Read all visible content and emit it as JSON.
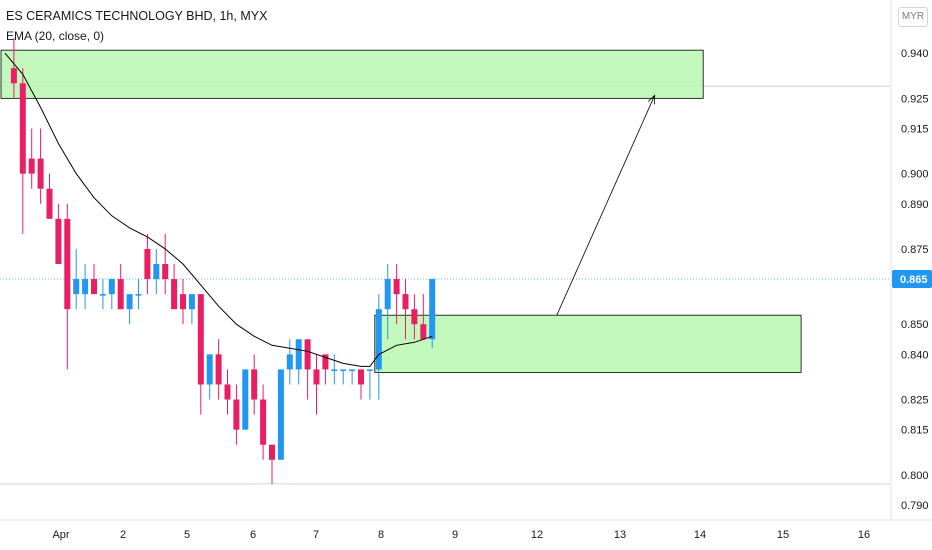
{
  "header": {
    "title": "ES CERAMICS TECHNOLOGY BHD, 1h, MYX",
    "indicator": "EMA (20, close, 0)",
    "currency": "MYR"
  },
  "colors": {
    "up": "#2196f3",
    "down": "#e91e63",
    "ema": "#000000",
    "zone_fill": "#b7f7b0",
    "zone_border": "#000000",
    "price_tag": "#2196f3"
  },
  "chart_data": {
    "type": "candlestick",
    "title": "ES CERAMICS TECHNOLOGY BHD, 1h, MYX",
    "ylim": [
      0.785,
      0.955
    ],
    "y_ticks": [
      "0.940",
      "0.925",
      "0.915",
      "0.900",
      "0.890",
      "0.875",
      "0.865",
      "0.850",
      "0.840",
      "0.825",
      "0.815",
      "0.800",
      "0.790"
    ],
    "x_ticks": [
      "Apr",
      "2",
      "5",
      "6",
      "7",
      "8",
      "9",
      "12",
      "13",
      "14",
      "15",
      "16"
    ],
    "last_price": "0.865",
    "candles": [
      {
        "x": 1,
        "o": 0.935,
        "h": 0.945,
        "l": 0.925,
        "c": 0.93
      },
      {
        "x": 2,
        "o": 0.93,
        "h": 0.935,
        "l": 0.88,
        "c": 0.9
      },
      {
        "x": 3,
        "o": 0.905,
        "h": 0.915,
        "l": 0.895,
        "c": 0.9
      },
      {
        "x": 4,
        "o": 0.905,
        "h": 0.915,
        "l": 0.89,
        "c": 0.895
      },
      {
        "x": 5,
        "o": 0.895,
        "h": 0.9,
        "l": 0.885,
        "c": 0.885
      },
      {
        "x": 6,
        "o": 0.885,
        "h": 0.89,
        "l": 0.87,
        "c": 0.87
      },
      {
        "x": 7,
        "o": 0.885,
        "h": 0.89,
        "l": 0.835,
        "c": 0.855
      },
      {
        "x": 8,
        "o": 0.86,
        "h": 0.875,
        "l": 0.855,
        "c": 0.865
      },
      {
        "x": 9,
        "o": 0.86,
        "h": 0.87,
        "l": 0.855,
        "c": 0.865
      },
      {
        "x": 10,
        "o": 0.865,
        "h": 0.87,
        "l": 0.86,
        "c": 0.86
      },
      {
        "x": 11,
        "o": 0.86,
        "h": 0.865,
        "l": 0.855,
        "c": 0.86
      },
      {
        "x": 12,
        "o": 0.86,
        "h": 0.865,
        "l": 0.855,
        "c": 0.865
      },
      {
        "x": 13,
        "o": 0.865,
        "h": 0.87,
        "l": 0.855,
        "c": 0.855
      },
      {
        "x": 14,
        "o": 0.855,
        "h": 0.86,
        "l": 0.85,
        "c": 0.86
      },
      {
        "x": 15,
        "o": 0.86,
        "h": 0.865,
        "l": 0.855,
        "c": 0.86
      },
      {
        "x": 16,
        "o": 0.875,
        "h": 0.88,
        "l": 0.86,
        "c": 0.865
      },
      {
        "x": 17,
        "o": 0.865,
        "h": 0.875,
        "l": 0.86,
        "c": 0.87
      },
      {
        "x": 18,
        "o": 0.87,
        "h": 0.88,
        "l": 0.86,
        "c": 0.865
      },
      {
        "x": 19,
        "o": 0.865,
        "h": 0.87,
        "l": 0.855,
        "c": 0.855
      },
      {
        "x": 20,
        "o": 0.86,
        "h": 0.865,
        "l": 0.85,
        "c": 0.855
      },
      {
        "x": 21,
        "o": 0.855,
        "h": 0.86,
        "l": 0.85,
        "c": 0.86
      },
      {
        "x": 22,
        "o": 0.86,
        "h": 0.86,
        "l": 0.82,
        "c": 0.83
      },
      {
        "x": 23,
        "o": 0.83,
        "h": 0.84,
        "l": 0.825,
        "c": 0.84
      },
      {
        "x": 24,
        "o": 0.84,
        "h": 0.845,
        "l": 0.825,
        "c": 0.83
      },
      {
        "x": 25,
        "o": 0.83,
        "h": 0.835,
        "l": 0.82,
        "c": 0.825
      },
      {
        "x": 26,
        "o": 0.825,
        "h": 0.83,
        "l": 0.81,
        "c": 0.815
      },
      {
        "x": 27,
        "o": 0.815,
        "h": 0.835,
        "l": 0.815,
        "c": 0.835
      },
      {
        "x": 28,
        "o": 0.835,
        "h": 0.84,
        "l": 0.82,
        "c": 0.825
      },
      {
        "x": 29,
        "o": 0.825,
        "h": 0.83,
        "l": 0.805,
        "c": 0.81
      },
      {
        "x": 30,
        "o": 0.81,
        "h": 0.81,
        "l": 0.797,
        "c": 0.805
      },
      {
        "x": 31,
        "o": 0.805,
        "h": 0.835,
        "l": 0.805,
        "c": 0.835
      },
      {
        "x": 32,
        "o": 0.835,
        "h": 0.845,
        "l": 0.83,
        "c": 0.84
      },
      {
        "x": 33,
        "o": 0.835,
        "h": 0.845,
        "l": 0.83,
        "c": 0.845
      },
      {
        "x": 34,
        "o": 0.845,
        "h": 0.845,
        "l": 0.825,
        "c": 0.835
      },
      {
        "x": 35,
        "o": 0.835,
        "h": 0.84,
        "l": 0.82,
        "c": 0.83
      },
      {
        "x": 36,
        "o": 0.84,
        "h": 0.84,
        "l": 0.83,
        "c": 0.835
      },
      {
        "x": 37,
        "o": 0.835,
        "h": 0.84,
        "l": 0.83,
        "c": 0.835
      },
      {
        "x": 38,
        "o": 0.835,
        "h": 0.835,
        "l": 0.83,
        "c": 0.835
      },
      {
        "x": 39,
        "o": 0.835,
        "h": 0.835,
        "l": 0.83,
        "c": 0.835
      },
      {
        "x": 40,
        "o": 0.835,
        "h": 0.835,
        "l": 0.825,
        "c": 0.83
      },
      {
        "x": 41,
        "o": 0.835,
        "h": 0.835,
        "l": 0.825,
        "c": 0.835
      },
      {
        "x": 42,
        "o": 0.835,
        "h": 0.86,
        "l": 0.825,
        "c": 0.855
      },
      {
        "x": 43,
        "o": 0.855,
        "h": 0.87,
        "l": 0.845,
        "c": 0.865
      },
      {
        "x": 44,
        "o": 0.865,
        "h": 0.87,
        "l": 0.85,
        "c": 0.86
      },
      {
        "x": 45,
        "o": 0.86,
        "h": 0.865,
        "l": 0.845,
        "c": 0.855
      },
      {
        "x": 46,
        "o": 0.855,
        "h": 0.86,
        "l": 0.845,
        "c": 0.85
      },
      {
        "x": 47,
        "o": 0.85,
        "h": 0.86,
        "l": 0.845,
        "c": 0.845
      },
      {
        "x": 48,
        "o": 0.845,
        "h": 0.865,
        "l": 0.842,
        "c": 0.865
      }
    ],
    "ema": [
      {
        "x": 0,
        "y": 0.94
      },
      {
        "x": 2,
        "y": 0.933
      },
      {
        "x": 4,
        "y": 0.922
      },
      {
        "x": 6,
        "y": 0.91
      },
      {
        "x": 8,
        "y": 0.9
      },
      {
        "x": 10,
        "y": 0.892
      },
      {
        "x": 12,
        "y": 0.886
      },
      {
        "x": 14,
        "y": 0.882
      },
      {
        "x": 16,
        "y": 0.879
      },
      {
        "x": 18,
        "y": 0.875
      },
      {
        "x": 20,
        "y": 0.87
      },
      {
        "x": 22,
        "y": 0.863
      },
      {
        "x": 24,
        "y": 0.856
      },
      {
        "x": 26,
        "y": 0.85
      },
      {
        "x": 28,
        "y": 0.846
      },
      {
        "x": 30,
        "y": 0.843
      },
      {
        "x": 32,
        "y": 0.842
      },
      {
        "x": 34,
        "y": 0.841
      },
      {
        "x": 36,
        "y": 0.839
      },
      {
        "x": 38,
        "y": 0.837
      },
      {
        "x": 40,
        "y": 0.836
      },
      {
        "x": 41,
        "y": 0.836
      },
      {
        "x": 42,
        "y": 0.84
      },
      {
        "x": 44,
        "y": 0.843
      },
      {
        "x": 46,
        "y": 0.844
      },
      {
        "x": 48,
        "y": 0.846
      }
    ],
    "zones": [
      {
        "name": "target-zone",
        "x_from": 0,
        "x_to": 78,
        "y_top": 0.941,
        "y_bottom": 0.925
      },
      {
        "name": "demand-zone",
        "x_from": 42,
        "x_to": 89,
        "y_top": 0.853,
        "y_bottom": 0.834
      }
    ],
    "arrow": {
      "x_from": 62,
      "y_from": 0.853,
      "x_to": 73,
      "y_to": 0.926
    },
    "crosshair_price": 0.929,
    "bottom_line_price": 0.797
  }
}
